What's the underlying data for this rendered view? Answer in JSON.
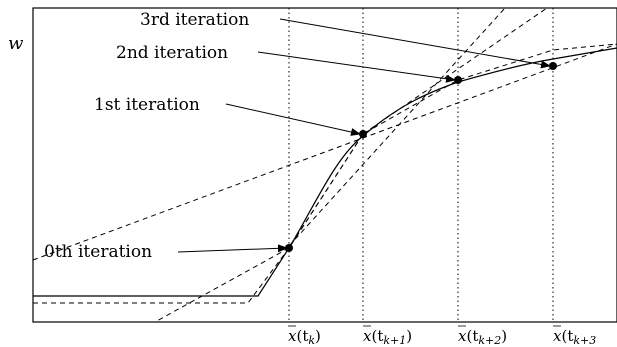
{
  "axes": {
    "y_label": "w"
  },
  "x_ticks": [
    {
      "base": "x",
      "arg_prefix": "(t",
      "sub": "k",
      "arg_suffix": ")"
    },
    {
      "base": "x",
      "arg_prefix": "(t",
      "sub": "k+1",
      "arg_suffix": ")"
    },
    {
      "base": "x",
      "arg_prefix": "(t",
      "sub": "k+2",
      "arg_suffix": ")"
    },
    {
      "base": "x",
      "arg_prefix": "(t",
      "sub": "k+3",
      "arg_suffix": ""
    }
  ],
  "annotations": [
    {
      "label": "0th iteration"
    },
    {
      "label": "1st iteration"
    },
    {
      "label": "2nd iteration"
    },
    {
      "label": "3rd iteration"
    }
  ],
  "colors": {
    "stroke": "#000000",
    "background": "#ffffff"
  }
}
